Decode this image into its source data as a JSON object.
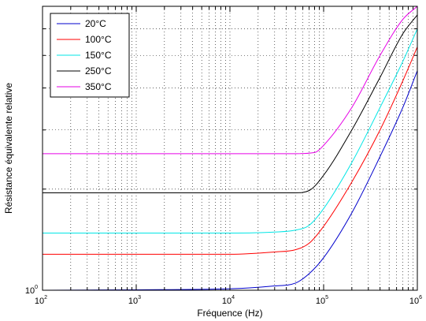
{
  "chart_data": {
    "type": "line",
    "title": "",
    "xlabel": "Fréquence (Hz)",
    "ylabel": "Résistance équivalente relative",
    "x_scale": "log",
    "y_scale": "log",
    "xlim": [
      100,
      1000000
    ],
    "ylim": [
      1,
      7
    ],
    "grid": true,
    "legend_position": "top-left",
    "x_tick_labels": [
      {
        "base": "10",
        "exp": "2"
      },
      {
        "base": "10",
        "exp": "3"
      },
      {
        "base": "10",
        "exp": "4"
      },
      {
        "base": "10",
        "exp": "5"
      },
      {
        "base": "10",
        "exp": "6"
      }
    ],
    "y_tick_labels": [
      {
        "base": "10",
        "exp": "0"
      }
    ],
    "series": [
      {
        "name": "20°C",
        "color": "#0000cc",
        "points": [
          [
            100,
            1.0
          ],
          [
            1000,
            1.003
          ],
          [
            10000,
            1.01
          ],
          [
            30000,
            1.03
          ],
          [
            50000,
            1.05
          ],
          [
            70000,
            1.12
          ],
          [
            100000,
            1.25
          ],
          [
            200000,
            1.7
          ],
          [
            400000,
            2.5
          ],
          [
            700000,
            3.5
          ],
          [
            1000000,
            4.5
          ]
        ]
      },
      {
        "name": "100°C",
        "color": "#ff0000",
        "points": [
          [
            100,
            1.28
          ],
          [
            1000,
            1.28
          ],
          [
            10000,
            1.28
          ],
          [
            30000,
            1.3
          ],
          [
            50000,
            1.32
          ],
          [
            70000,
            1.38
          ],
          [
            100000,
            1.55
          ],
          [
            200000,
            2.1
          ],
          [
            400000,
            3.0
          ],
          [
            700000,
            4.2
          ],
          [
            1000000,
            5.3
          ]
        ]
      },
      {
        "name": "150°C",
        "color": "#00e6e6",
        "points": [
          [
            100,
            1.48
          ],
          [
            1000,
            1.48
          ],
          [
            10000,
            1.48
          ],
          [
            30000,
            1.49
          ],
          [
            50000,
            1.51
          ],
          [
            70000,
            1.56
          ],
          [
            100000,
            1.75
          ],
          [
            200000,
            2.4
          ],
          [
            400000,
            3.5
          ],
          [
            700000,
            4.8
          ],
          [
            1000000,
            6.0
          ]
        ]
      },
      {
        "name": "250°C",
        "color": "#000000",
        "points": [
          [
            100,
            1.95
          ],
          [
            1000,
            1.95
          ],
          [
            10000,
            1.95
          ],
          [
            30000,
            1.95
          ],
          [
            50000,
            1.95
          ],
          [
            70000,
            1.98
          ],
          [
            100000,
            2.2
          ],
          [
            200000,
            3.0
          ],
          [
            400000,
            4.3
          ],
          [
            700000,
            5.8
          ],
          [
            1000000,
            6.6
          ]
        ]
      },
      {
        "name": "350°C",
        "color": "#e600e6",
        "points": [
          [
            100,
            2.55
          ],
          [
            1000,
            2.55
          ],
          [
            10000,
            2.55
          ],
          [
            30000,
            2.55
          ],
          [
            50000,
            2.55
          ],
          [
            80000,
            2.57
          ],
          [
            100000,
            2.7
          ],
          [
            200000,
            3.5
          ],
          [
            400000,
            5.0
          ],
          [
            700000,
            6.4
          ],
          [
            1000000,
            7.0
          ]
        ]
      }
    ]
  }
}
